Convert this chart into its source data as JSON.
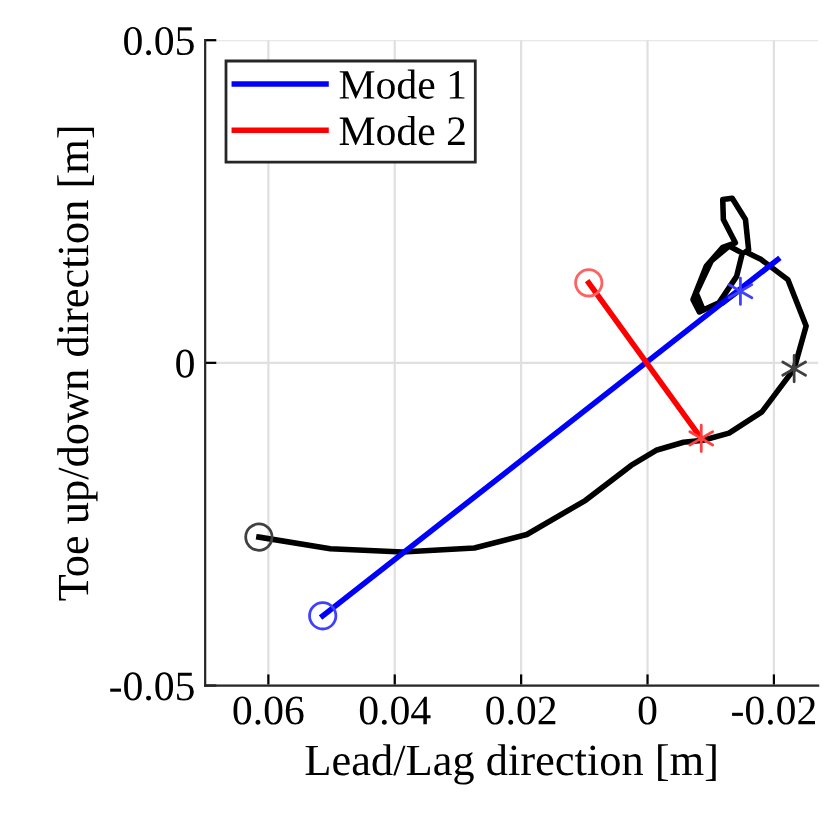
{
  "chart_data": {
    "type": "line",
    "xlabel": "Lead/Lag direction [m]",
    "ylabel": "Toe up/down direction [m]",
    "xlim": [
      0.07,
      -0.027
    ],
    "xticks": [
      0.06,
      0.04,
      0.02,
      0,
      -0.02
    ],
    "ylim": [
      -0.05,
      0.05
    ],
    "yticks": [
      -0.05,
      0,
      0.05
    ],
    "grid": true,
    "legend": "top left",
    "series": [
      {
        "color": "#000000",
        "x": [
          0.0615,
          0.0502,
          0.0388,
          0.0274,
          0.0191,
          0.0098,
          0.0026,
          -0.0015,
          -0.0057,
          -0.0088,
          -0.0129,
          -0.0181,
          -0.0227,
          -0.0232,
          -0.0251,
          -0.0222,
          -0.018,
          -0.0155,
          -0.016,
          -0.0155,
          -0.0134,
          -0.0119,
          -0.012,
          -0.0139,
          -0.0119,
          -0.0093,
          -0.0072,
          -0.0082,
          -0.0113,
          -0.0141,
          -0.015,
          -0.0129,
          -0.0101,
          -0.0077,
          -0.0088,
          -0.0119,
          -0.0139
        ],
        "values": [
          -0.027,
          -0.0288,
          -0.0293,
          -0.0287,
          -0.0266,
          -0.0213,
          -0.0159,
          -0.0135,
          -0.0123,
          -0.012,
          -0.0109,
          -0.0076,
          -0.0016,
          -0.0009,
          0.0057,
          0.0129,
          0.016,
          0.0172,
          0.0175,
          0.0222,
          0.0255,
          0.0253,
          0.0222,
          0.0186,
          0.0179,
          0.015,
          0.0098,
          0.0079,
          0.0093,
          0.0134,
          0.017,
          0.0181,
          0.0158,
          0.0108,
          0.0082,
          0.0093,
          0.0108
        ]
      },
      {
        "name": "Mode 1",
        "color": "#0000ff",
        "x": [
          0.0514,
          -0.0206
        ],
        "values": [
          -0.0392,
          0.016
        ]
      },
      {
        "name": "Mode 2",
        "color": "#ff0000",
        "x": [
          0.0093,
          -0.0085
        ],
        "values": [
          0.0124,
          -0.0117
        ]
      },
      {
        "type": "scatter",
        "marker": "circle",
        "color": "#404040",
        "x": [
          0.0615
        ],
        "values": [
          -0.027
        ]
      },
      {
        "type": "scatter",
        "marker": "cross",
        "color": "#404040",
        "x": [
          -0.0232
        ],
        "values": [
          -0.0009
        ]
      },
      {
        "type": "scatter",
        "marker": "circle",
        "color": "#4040ff",
        "x": [
          0.0514
        ],
        "values": [
          -0.0392
        ]
      },
      {
        "type": "scatter",
        "marker": "cross",
        "color": "#4040ff",
        "x": [
          -0.0147
        ],
        "values": [
          0.0111
        ]
      },
      {
        "type": "scatter",
        "marker": "circle",
        "color": "#ff6060",
        "x": [
          0.0093
        ],
        "values": [
          0.0124
        ]
      },
      {
        "type": "scatter",
        "marker": "cross",
        "color": "#ff4040",
        "x": [
          -0.0085
        ],
        "values": [
          -0.0117
        ]
      }
    ]
  }
}
